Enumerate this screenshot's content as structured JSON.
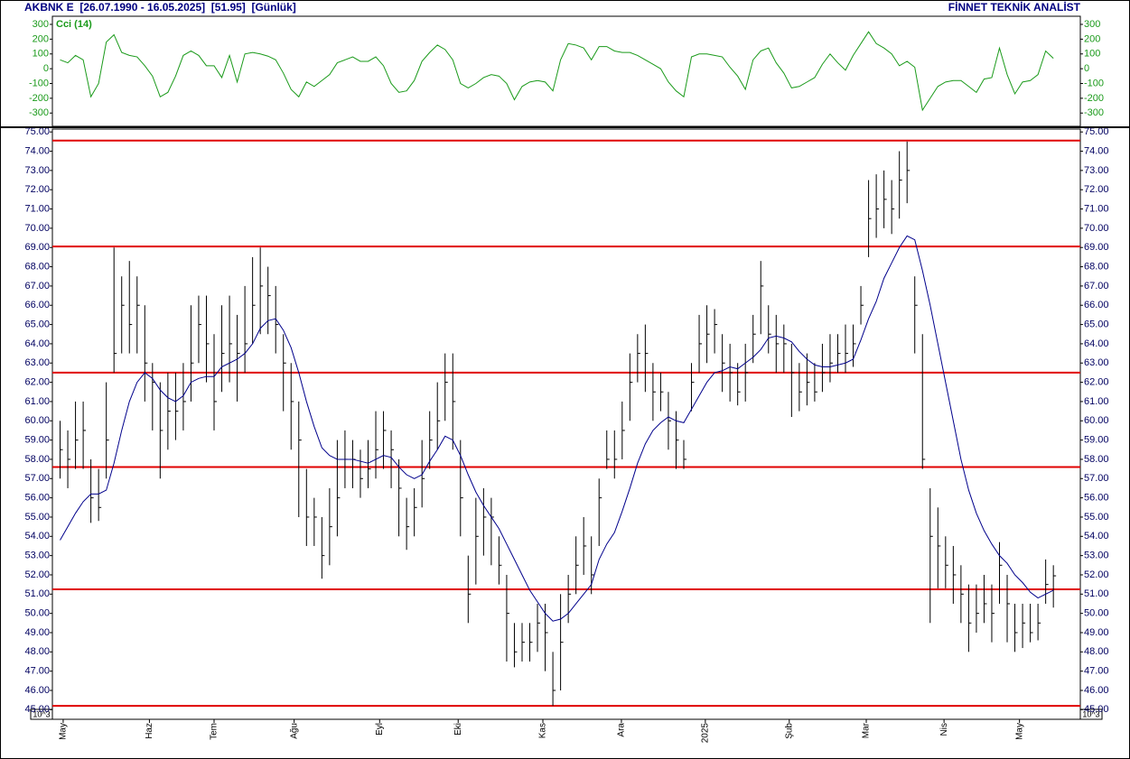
{
  "header": {
    "title": "AKBNK E  [26.07.1990 - 16.05.2025]  [51.95]  [Günlük]",
    "brand": "FİNNET TEKNİK ANALİST"
  },
  "chart_data": [
    {
      "type": "line",
      "label": "Cci (14)",
      "color": "#1a9a1a",
      "xlim": [
        -1,
        132.5
      ],
      "ylim": [
        -390,
        355
      ],
      "yticks": [
        300,
        200,
        100,
        0,
        -100,
        -200,
        -300
      ],
      "values": [
        60,
        40,
        90,
        60,
        -190,
        -100,
        180,
        230,
        110,
        90,
        80,
        20,
        -50,
        -190,
        -160,
        -50,
        90,
        120,
        90,
        20,
        20,
        -60,
        90,
        -90,
        100,
        110,
        100,
        85,
        60,
        -30,
        -140,
        -190,
        -90,
        -120,
        -80,
        -40,
        40,
        60,
        80,
        50,
        50,
        80,
        20,
        -100,
        -160,
        -150,
        -80,
        50,
        110,
        160,
        130,
        60,
        -100,
        -130,
        -100,
        -60,
        -40,
        -50,
        -100,
        -210,
        -120,
        -90,
        -80,
        -90,
        -150,
        60,
        170,
        160,
        140,
        60,
        150,
        150,
        120,
        110,
        110,
        90,
        60,
        30,
        0,
        -90,
        -150,
        -190,
        80,
        100,
        100,
        90,
        80,
        10,
        -50,
        -140,
        60,
        120,
        140,
        40,
        -30,
        -130,
        -120,
        -90,
        -60,
        30,
        100,
        40,
        -10,
        90,
        170,
        250,
        170,
        140,
        100,
        20,
        50,
        10,
        -280,
        -200,
        -120,
        -90,
        -80,
        -80,
        -120,
        -160,
        -70,
        -60,
        140,
        -40,
        -170,
        -90,
        -80,
        -40,
        120,
        70
      ]
    },
    {
      "type": "ohlc",
      "color": "#000000",
      "axis_note": "10^3",
      "xlim": [
        -1,
        132.5
      ],
      "ylim": [
        44.5,
        75.15
      ],
      "xticks": [
        {
          "value": 0.4,
          "label": "May"
        },
        {
          "value": 11.6,
          "label": "Haz"
        },
        {
          "value": 20,
          "label": "Tem"
        },
        {
          "value": 30.4,
          "label": "Ağu"
        },
        {
          "value": 41.5,
          "label": "Eyl"
        },
        {
          "value": 51.7,
          "label": "Eki"
        },
        {
          "value": 62.7,
          "label": "Kas"
        },
        {
          "value": 72.9,
          "label": "Ara"
        },
        {
          "value": 83.8,
          "label": "2025"
        },
        {
          "value": 94.7,
          "label": "Şub"
        },
        {
          "value": 104.7,
          "label": "Mar"
        },
        {
          "value": 114.8,
          "label": "Nis"
        },
        {
          "value": 124.6,
          "label": "May"
        }
      ],
      "yticks": [
        {
          "value": 45,
          "label": "45.00"
        },
        {
          "value": 46,
          "label": "46.00"
        },
        {
          "value": 47,
          "label": "47.00"
        },
        {
          "value": 48,
          "label": "48.00"
        },
        {
          "value": 49,
          "label": "49.00"
        },
        {
          "value": 50,
          "label": "50.00"
        },
        {
          "value": 51,
          "label": "51.00"
        },
        {
          "value": 52,
          "label": "52.00"
        },
        {
          "value": 53,
          "label": "53.00"
        },
        {
          "value": 54,
          "label": "54.00"
        },
        {
          "value": 55,
          "label": "55.00"
        },
        {
          "value": 56,
          "label": "56.00"
        },
        {
          "value": 57,
          "label": "57.00"
        },
        {
          "value": 58,
          "label": "58.00"
        },
        {
          "value": 59,
          "label": "59.00"
        },
        {
          "value": 60,
          "label": "60.00"
        },
        {
          "value": 61,
          "label": "61.00"
        },
        {
          "value": 62,
          "label": "62.00"
        },
        {
          "value": 63,
          "label": "63.00"
        },
        {
          "value": 64,
          "label": "64.00"
        },
        {
          "value": 65,
          "label": "65.00"
        },
        {
          "value": 66,
          "label": "66.00"
        },
        {
          "value": 67,
          "label": "67.00"
        },
        {
          "value": 68,
          "label": "68.00"
        },
        {
          "value": 69,
          "label": "69.00"
        },
        {
          "value": 70,
          "label": "70.00"
        },
        {
          "value": 71,
          "label": "71.00"
        },
        {
          "value": 72,
          "label": "72.00"
        },
        {
          "value": 73,
          "label": "73.00"
        },
        {
          "value": 74,
          "label": "74.00"
        },
        {
          "value": 75,
          "label": "75.00"
        }
      ],
      "hlines": [
        74.55,
        69.05,
        62.5,
        57.6,
        51.25,
        45.2
      ],
      "hline_color": "#e00000",
      "high": [
        60,
        59.5,
        61,
        61,
        58,
        57.5,
        62,
        69,
        67.5,
        68.3,
        67.5,
        66,
        63,
        62,
        62.5,
        62.5,
        63,
        66,
        66.5,
        66.5,
        64.5,
        66,
        66.5,
        65.5,
        67,
        68.5,
        69,
        68,
        67,
        64.5,
        63,
        61,
        57.5,
        56,
        55,
        56.5,
        59,
        59.5,
        59,
        58.5,
        59,
        60.5,
        60.5,
        59.5,
        58,
        56,
        56.5,
        59,
        60.5,
        62,
        63.5,
        63.5,
        59,
        53,
        56,
        56.5,
        56,
        54,
        52,
        49.5,
        49.5,
        49.5,
        50.5,
        50.5,
        48,
        51,
        52,
        54,
        55,
        54,
        57,
        59.5,
        59.5,
        61,
        63.5,
        64.5,
        65,
        63,
        62.5,
        61.5,
        60.5,
        59,
        63,
        65.5,
        66,
        65.8,
        64.5,
        64,
        63,
        64,
        65.5,
        68.3,
        66,
        65.5,
        65,
        64,
        63,
        63.5,
        63,
        64,
        64.5,
        64.5,
        65,
        65,
        67,
        72.5,
        72.8,
        73,
        72.5,
        74,
        74.5,
        67.5,
        64.5,
        56.5,
        55.5,
        54,
        53.5,
        52.5,
        51.5,
        51.5,
        52,
        51.5,
        53.7,
        52,
        50.5,
        50.5,
        50.5,
        50.5,
        52.8,
        52.5
      ],
      "low": [
        57,
        56.5,
        57.5,
        57.5,
        54.7,
        54.8,
        57,
        62.5,
        63.5,
        63.5,
        63.5,
        61,
        59.5,
        57,
        58.5,
        59,
        59.5,
        61,
        63,
        62,
        59.5,
        61.5,
        62,
        61,
        62.5,
        64,
        64.5,
        64.5,
        63.5,
        60.5,
        58.5,
        55,
        53.5,
        53.5,
        51.8,
        52.5,
        54,
        56.5,
        56.5,
        56,
        56.5,
        57,
        57.5,
        56.5,
        54,
        53.3,
        54,
        55.5,
        57.5,
        58.5,
        60,
        58.5,
        54,
        49.5,
        51.5,
        53,
        52.5,
        51.5,
        47.5,
        47.2,
        47.5,
        47.5,
        48,
        47,
        45.2,
        46,
        49.5,
        51,
        52,
        51,
        53.5,
        57.5,
        57,
        58,
        60,
        62,
        61.5,
        60,
        60.5,
        58.5,
        57.5,
        57.5,
        60.5,
        62.5,
        63,
        63.5,
        61.5,
        61,
        60.8,
        61,
        63,
        64.5,
        63.5,
        62.5,
        62.5,
        60.2,
        60.5,
        60.8,
        61,
        61.5,
        62,
        62.5,
        62.5,
        62.8,
        65,
        68.5,
        69.5,
        70,
        69.7,
        70.5,
        71.3,
        63.5,
        57.5,
        49.5,
        51.3,
        51.3,
        50.5,
        49.5,
        48,
        49,
        49.5,
        48.5,
        50.5,
        48.5,
        48,
        48.2,
        48.5,
        48.6,
        50.5,
        50.3
      ],
      "close": [
        58.5,
        58,
        59,
        59.5,
        56,
        55.5,
        59,
        63.5,
        66,
        65,
        66,
        63,
        62,
        59.5,
        60.5,
        60.5,
        61,
        63,
        65,
        64,
        61,
        63.5,
        64,
        63.5,
        64,
        66,
        67,
        66.5,
        65,
        63,
        61,
        59,
        55,
        55,
        53,
        54.5,
        56,
        58,
        58,
        57,
        57.5,
        58.5,
        59.5,
        58.5,
        56.5,
        54.5,
        55.5,
        57,
        59,
        60,
        62,
        61,
        56,
        51,
        54,
        55,
        55,
        52.5,
        50,
        48,
        48.5,
        48.5,
        49.5,
        49,
        46,
        48.5,
        51,
        52.5,
        53.5,
        52,
        56,
        58,
        58,
        59.5,
        62,
        63.5,
        63.5,
        61.5,
        61.5,
        60,
        59,
        58,
        62,
        64,
        64.5,
        65,
        63,
        62.5,
        61.5,
        62.5,
        64.5,
        67,
        64.5,
        64,
        64,
        62.5,
        61.5,
        62,
        61.5,
        62.5,
        63,
        63.5,
        63.5,
        64,
        66,
        70.5,
        71,
        71.5,
        71,
        72.5,
        73,
        66,
        58,
        54,
        53.5,
        52.5,
        52,
        51,
        49.5,
        50,
        50.5,
        50,
        52.5,
        50.5,
        49,
        49.5,
        49,
        49.5,
        51.5,
        51.95
      ],
      "ma": {
        "color": "#00008b",
        "values": [
          53.8,
          54.5,
          55.2,
          55.8,
          56.2,
          56.2,
          56.4,
          57.8,
          59.5,
          61,
          62,
          62.5,
          62.2,
          61.6,
          61.2,
          61,
          61.3,
          62,
          62.2,
          62.3,
          62.3,
          62.8,
          63,
          63.2,
          63.5,
          64,
          64.8,
          65.2,
          65.3,
          64.7,
          63.8,
          62.5,
          61,
          59.7,
          58.6,
          58.2,
          58,
          58,
          58,
          57.9,
          57.8,
          58,
          58.2,
          58.1,
          57.6,
          57.2,
          57,
          57.2,
          57.9,
          58.5,
          59.2,
          59,
          58.2,
          57.2,
          56.3,
          55.6,
          55,
          54.4,
          53.6,
          52.8,
          52,
          51.2,
          50.6,
          50,
          49.6,
          49.7,
          50,
          50.5,
          51,
          51.5,
          52.8,
          53.6,
          54.2,
          55.3,
          56.5,
          57.8,
          58.8,
          59.5,
          59.9,
          60.2,
          60,
          59.9,
          60.6,
          61.3,
          62,
          62.5,
          62.6,
          62.8,
          62.7,
          63,
          63.3,
          63.7,
          64.3,
          64.4,
          64.3,
          64.1,
          63.6,
          63.2,
          62.9,
          62.8,
          62.8,
          62.9,
          63,
          63.2,
          64.2,
          65.3,
          66.2,
          67.4,
          68.2,
          69,
          69.6,
          69.4,
          67.8,
          66,
          64,
          62,
          60,
          58,
          56.4,
          55.2,
          54.3,
          53.6,
          53,
          52.6,
          52,
          51.6,
          51.1,
          50.8,
          51,
          51.2
        ]
      }
    }
  ]
}
